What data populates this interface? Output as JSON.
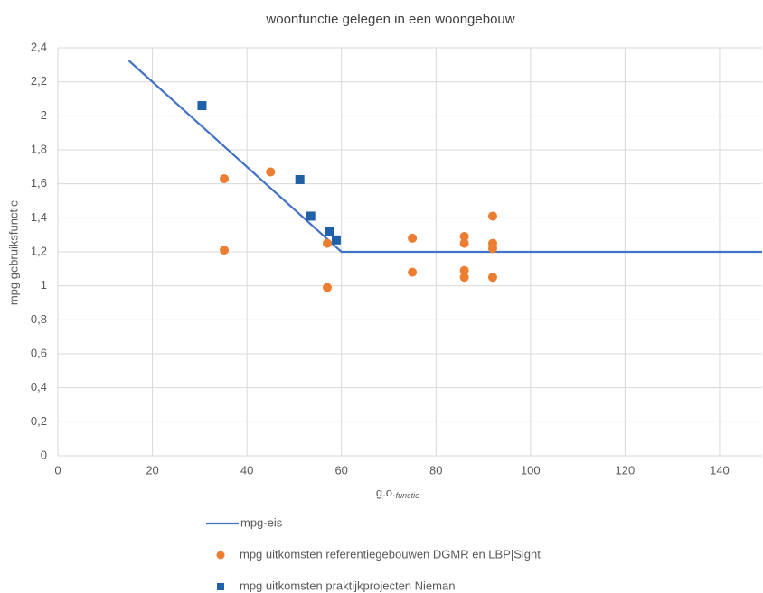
{
  "chart_data": {
    "type": "scatter",
    "title": "woonfunctie gelegen in een woongebouw",
    "xlabel": "g.o.",
    "xlabel_sub": "functie",
    "ylabel": "mpg gebruiksfunctie",
    "xlim": [
      0,
      149
    ],
    "xticks": [
      0,
      20,
      40,
      60,
      80,
      100,
      120,
      140
    ],
    "ylim": [
      0,
      2.4
    ],
    "yticks": [
      0,
      {
        "value": 0.2,
        "label": "0,2"
      },
      {
        "value": 0.4,
        "label": "0,4"
      },
      {
        "value": 0.6,
        "label": "0,6"
      },
      {
        "value": 0.8,
        "label": "0,8"
      },
      1,
      {
        "value": 1.2,
        "label": "1,2"
      },
      {
        "value": 1.4,
        "label": "1,4"
      },
      {
        "value": 1.6,
        "label": "1,6"
      },
      {
        "value": 1.8,
        "label": "1,8"
      },
      2,
      {
        "value": 2.2,
        "label": "2,2"
      },
      {
        "value": 2.4,
        "label": "2,4"
      }
    ],
    "grid": true,
    "legend": "bottom",
    "series": [
      {
        "name": "mpg-eis",
        "type": "line",
        "color": "#4472c4",
        "x": [
          15,
          60,
          149
        ],
        "values": [
          2.325,
          1.2,
          1.2
        ]
      },
      {
        "name": "mpg uitkomsten referentiegebouwen DGMR en LBP|Sight",
        "type": "scatter",
        "marker": "circle",
        "color": "#ed7d31",
        "x": [
          35.2,
          35.2,
          45,
          57,
          57,
          75,
          75,
          86,
          86,
          86,
          86,
          92,
          92,
          92,
          92
        ],
        "values": [
          1.63,
          1.21,
          1.67,
          1.25,
          0.99,
          1.28,
          1.08,
          1.29,
          1.25,
          1.09,
          1.05,
          1.41,
          1.25,
          1.22,
          1.05
        ]
      },
      {
        "name": "mpg uitkomsten praktijkprojecten Nieman",
        "type": "scatter",
        "marker": "square",
        "color": "#2060a8",
        "x": [
          30.5,
          51.2,
          53.5,
          57.5,
          58.9
        ],
        "values": [
          2.06,
          1.625,
          1.41,
          1.32,
          1.27
        ]
      }
    ]
  }
}
